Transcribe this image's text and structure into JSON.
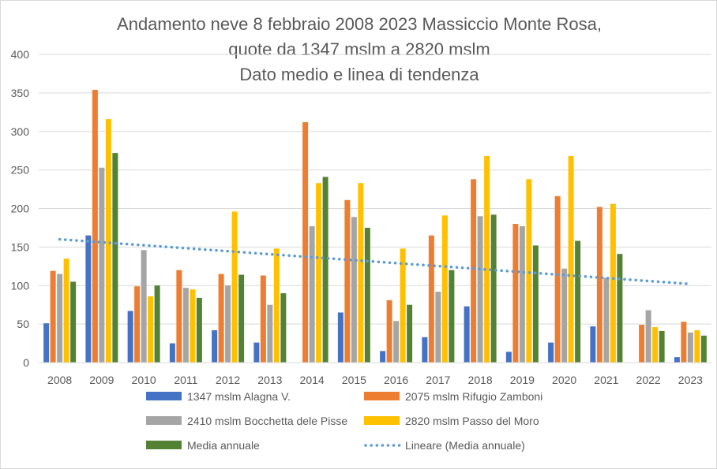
{
  "chart_data": {
    "type": "bar",
    "title": [
      "Andamento neve 8 febbraio 2008 2023 Massiccio Monte Rosa,",
      "quote da 1347 mslm a 2820 mslm",
      "Dato medio e linea di tendenza"
    ],
    "xlabel": "",
    "ylabel": "",
    "ylim": [
      0,
      400
    ],
    "yticks": [
      0,
      50,
      100,
      150,
      200,
      250,
      300,
      350,
      400
    ],
    "grid": true,
    "legend_position": "bottom",
    "categories": [
      "2008",
      "2009",
      "2010",
      "2011",
      "2012",
      "2013",
      "2014",
      "2015",
      "2016",
      "2017",
      "2018",
      "2019",
      "2020",
      "2021",
      "2022",
      "2023"
    ],
    "series": [
      {
        "name": "1347 mslm Alagna V.",
        "color": "#4472c4",
        "values": [
          51,
          165,
          67,
          25,
          42,
          26,
          0,
          65,
          15,
          33,
          73,
          14,
          26,
          47,
          0,
          7
        ]
      },
      {
        "name": "2075 mslm Rifugio Zamboni",
        "color": "#ed7d31",
        "values": [
          119,
          354,
          99,
          120,
          115,
          113,
          312,
          211,
          81,
          165,
          238,
          180,
          216,
          202,
          49,
          53
        ]
      },
      {
        "name": "2410 mslm Bocchetta dele Pisse",
        "color": "#a5a5a5",
        "values": [
          115,
          253,
          146,
          97,
          100,
          75,
          177,
          189,
          54,
          92,
          190,
          177,
          122,
          110,
          68,
          39
        ]
      },
      {
        "name": "2820 mslm Passo del Moro",
        "color": "#ffc000",
        "values": [
          135,
          316,
          86,
          95,
          196,
          148,
          233,
          233,
          148,
          191,
          268,
          238,
          268,
          206,
          46,
          42
        ]
      },
      {
        "name": "Media annuale",
        "color": "#548235",
        "values": [
          105,
          272,
          100,
          84,
          114,
          90,
          241,
          175,
          75,
          120,
          192,
          152,
          158,
          141,
          41,
          35
        ]
      }
    ],
    "trendline": {
      "name": "Lineare (Media annuale)",
      "color": "#5b9bd5",
      "style": "dotted",
      "start": 160,
      "end": 102
    }
  }
}
